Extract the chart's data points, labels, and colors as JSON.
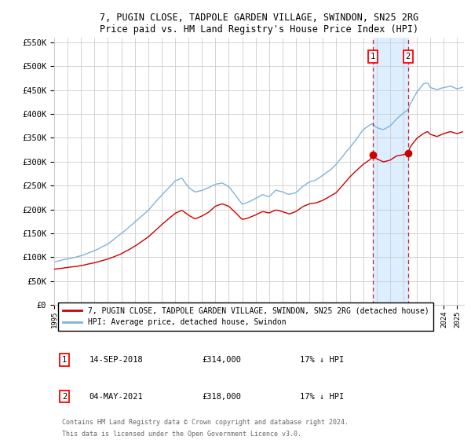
{
  "title": "7, PUGIN CLOSE, TADPOLE GARDEN VILLAGE, SWINDON, SN25 2RG",
  "subtitle": "Price paid vs. HM Land Registry's House Price Index (HPI)",
  "ylim": [
    0,
    560000
  ],
  "yticks": [
    0,
    50000,
    100000,
    150000,
    200000,
    250000,
    300000,
    350000,
    400000,
    450000,
    500000,
    550000
  ],
  "ytick_labels": [
    "£0",
    "£50K",
    "£100K",
    "£150K",
    "£200K",
    "£250K",
    "£300K",
    "£350K",
    "£400K",
    "£450K",
    "£500K",
    "£550K"
  ],
  "x_start_year": 1995.0,
  "x_end_year": 2025.5,
  "sale1_date": 2018.71,
  "sale1_price": 314000,
  "sale1_label": "1",
  "sale1_date_str": "14-SEP-2018",
  "sale1_price_str": "£314,000",
  "sale1_pct": "17% ↓ HPI",
  "sale2_date": 2021.34,
  "sale2_price": 318000,
  "sale2_label": "2",
  "sale2_date_str": "04-MAY-2021",
  "sale2_price_str": "£318,000",
  "sale2_pct": "17% ↓ HPI",
  "red_line_label": "7, PUGIN CLOSE, TADPOLE GARDEN VILLAGE, SWINDON, SN25 2RG (detached house)",
  "blue_line_label": "HPI: Average price, detached house, Swindon",
  "footer1": "Contains HM Land Registry data © Crown copyright and database right 2024.",
  "footer2": "This data is licensed under the Open Government Licence v3.0.",
  "blue_color": "#7fb3d9",
  "red_color": "#cc0000",
  "shade_color": "#ddeeff",
  "grid_color": "#cccccc",
  "background_color": "#ffffff"
}
